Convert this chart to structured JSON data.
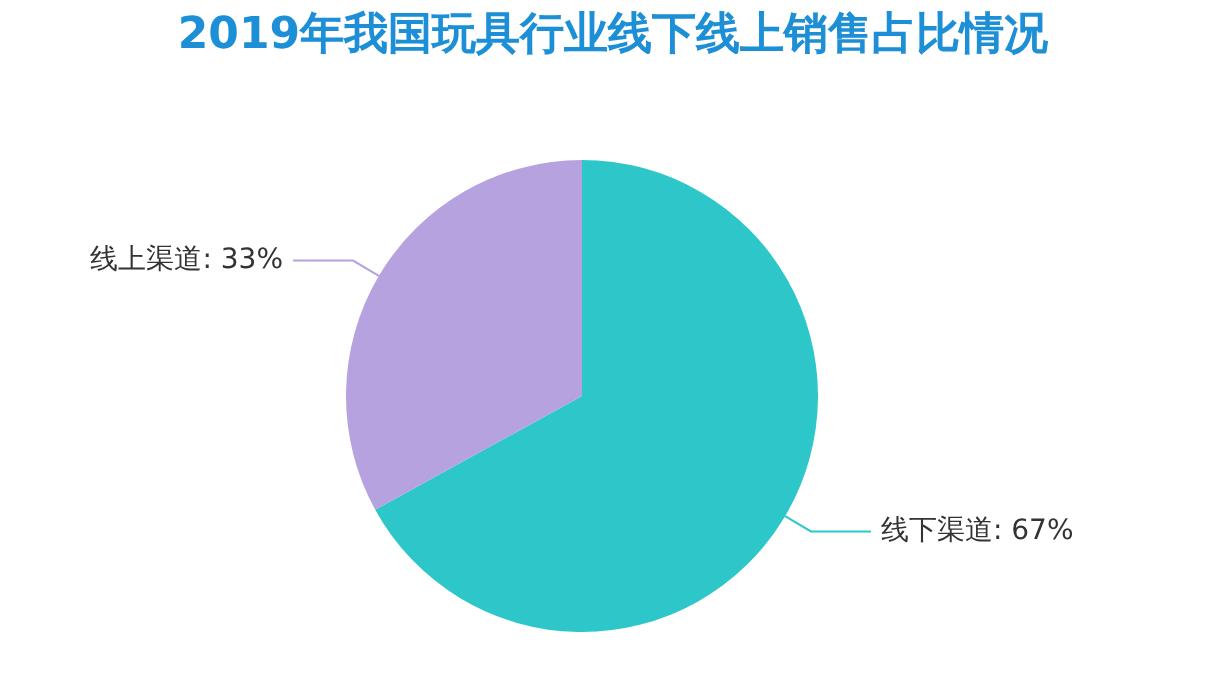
{
  "chart_data": {
    "type": "pie",
    "title": "2019年我国玩具行业线下线上销售占比情况",
    "categories": [
      "线下渠道",
      "线上渠道"
    ],
    "values": [
      67,
      33
    ],
    "colors": [
      "#2ec7c9",
      "#b6a2de"
    ],
    "value_labels": [
      "67%",
      "33%"
    ],
    "legend": false
  }
}
